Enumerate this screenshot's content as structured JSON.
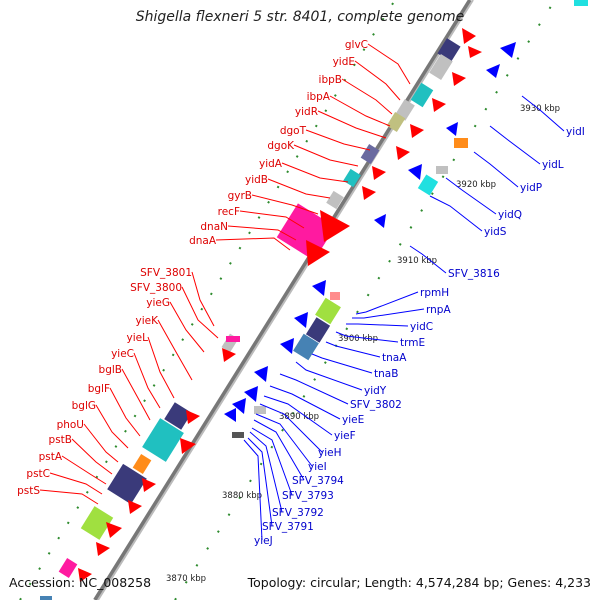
{
  "title": "Shigella flexneri 5 str. 8401, complete genome",
  "footer": {
    "accession": "Accession: NC_008258",
    "topology": "Topology: circular; Length: 4,574,284 bp; Genes: 4,233"
  },
  "colors": {
    "forward": "#ff0000",
    "reverse": "#0000ff",
    "backbone": "#999999",
    "tick": "#2e8b2e"
  },
  "kbp_marks": [
    "3930 kbp",
    "3920 kbp",
    "3910 kbp",
    "3900 kbp",
    "3890 kbp",
    "3880 kbp",
    "3870 kbp"
  ],
  "left_genes": [
    "glvC",
    "yidE",
    "ibpB",
    "ibpA",
    "yidR",
    "dgoT",
    "dgoK",
    "yidA",
    "yidB",
    "gyrB",
    "recF",
    "dnaN",
    "dnaA",
    "SFV_3801",
    "SFV_3800",
    "yieG",
    "yieK",
    "yieL",
    "yieC",
    "bglB",
    "bglF",
    "bglG",
    "phoU",
    "pstB",
    "pstA",
    "pstC",
    "pstS"
  ],
  "right_genes": [
    "yidI",
    "yidL",
    "yidP",
    "yidQ",
    "yidS",
    "SFV_3816",
    "rpmH",
    "rnpA",
    "yidC",
    "trmE",
    "tnaA",
    "tnaB",
    "yidY",
    "SFV_3802",
    "yieE",
    "yieF",
    "yieH",
    "yieI",
    "SFV_3794",
    "SFV_3793",
    "SFV_3792",
    "SFV_3791",
    "yieJ"
  ]
}
